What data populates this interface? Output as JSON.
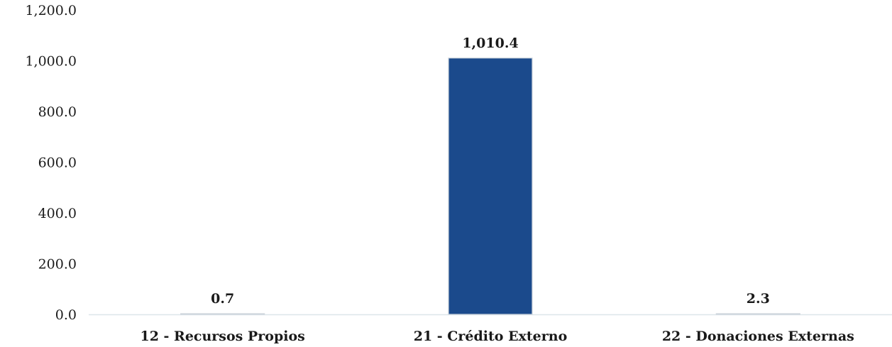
{
  "chart_data": {
    "type": "bar",
    "categories": [
      "12 - Recursos Propios",
      "21 - Crédito Externo",
      "22 - Donaciones Externas"
    ],
    "values": [
      0.7,
      1010.4,
      2.3
    ],
    "data_labels": [
      "0.7",
      "1,010.4",
      "2.3"
    ],
    "ylim": [
      0,
      1200
    ],
    "yticks": [
      0,
      200,
      400,
      600,
      800,
      1000,
      1200
    ],
    "ytick_labels": [
      "0.0",
      "200.0",
      "400.0",
      "600.0",
      "800.0",
      "1,000.0",
      "1,200.0"
    ],
    "grid": false,
    "legend": "none",
    "bar_color": "#1b4a8c",
    "bar_edge_color": "#cfd6dd",
    "axis_color": "#dde6ea"
  }
}
